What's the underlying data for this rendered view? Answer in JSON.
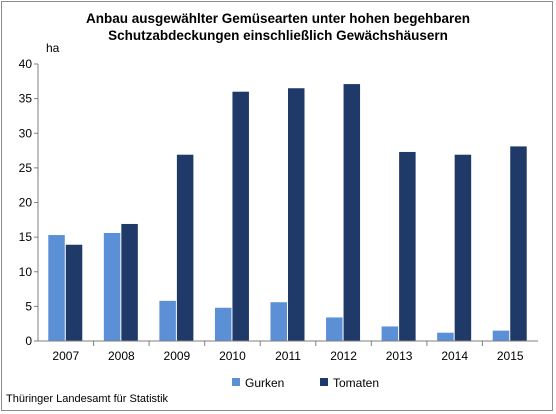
{
  "source": "Thüringer Landesamt für Statistik",
  "colors": {
    "gurken": "#5b8fd6",
    "tomaten": "#1f3a68",
    "axis": "#7f7f7f"
  },
  "chart_data": {
    "type": "bar",
    "title": [
      "Anbau ausgewählter Gemüsearten unter hohen begehbaren",
      "Schutzabdeckungen einschließlich Gewächshäusern"
    ],
    "xlabel": "",
    "ylabel": "ha",
    "ylim": [
      0,
      40
    ],
    "yticks": [
      0,
      5,
      10,
      15,
      20,
      25,
      30,
      35,
      40
    ],
    "categories": [
      "2007",
      "2008",
      "2009",
      "2010",
      "2011",
      "2012",
      "2013",
      "2014",
      "2015"
    ],
    "series": [
      {
        "name": "Gurken",
        "values": [
          15.3,
          15.6,
          5.8,
          4.8,
          5.6,
          3.4,
          2.1,
          1.2,
          1.5
        ]
      },
      {
        "name": "Tomaten",
        "values": [
          13.9,
          16.9,
          26.9,
          36.0,
          36.5,
          37.1,
          27.3,
          26.9,
          28.1
        ]
      }
    ],
    "legend": "bottom",
    "grid": false
  }
}
